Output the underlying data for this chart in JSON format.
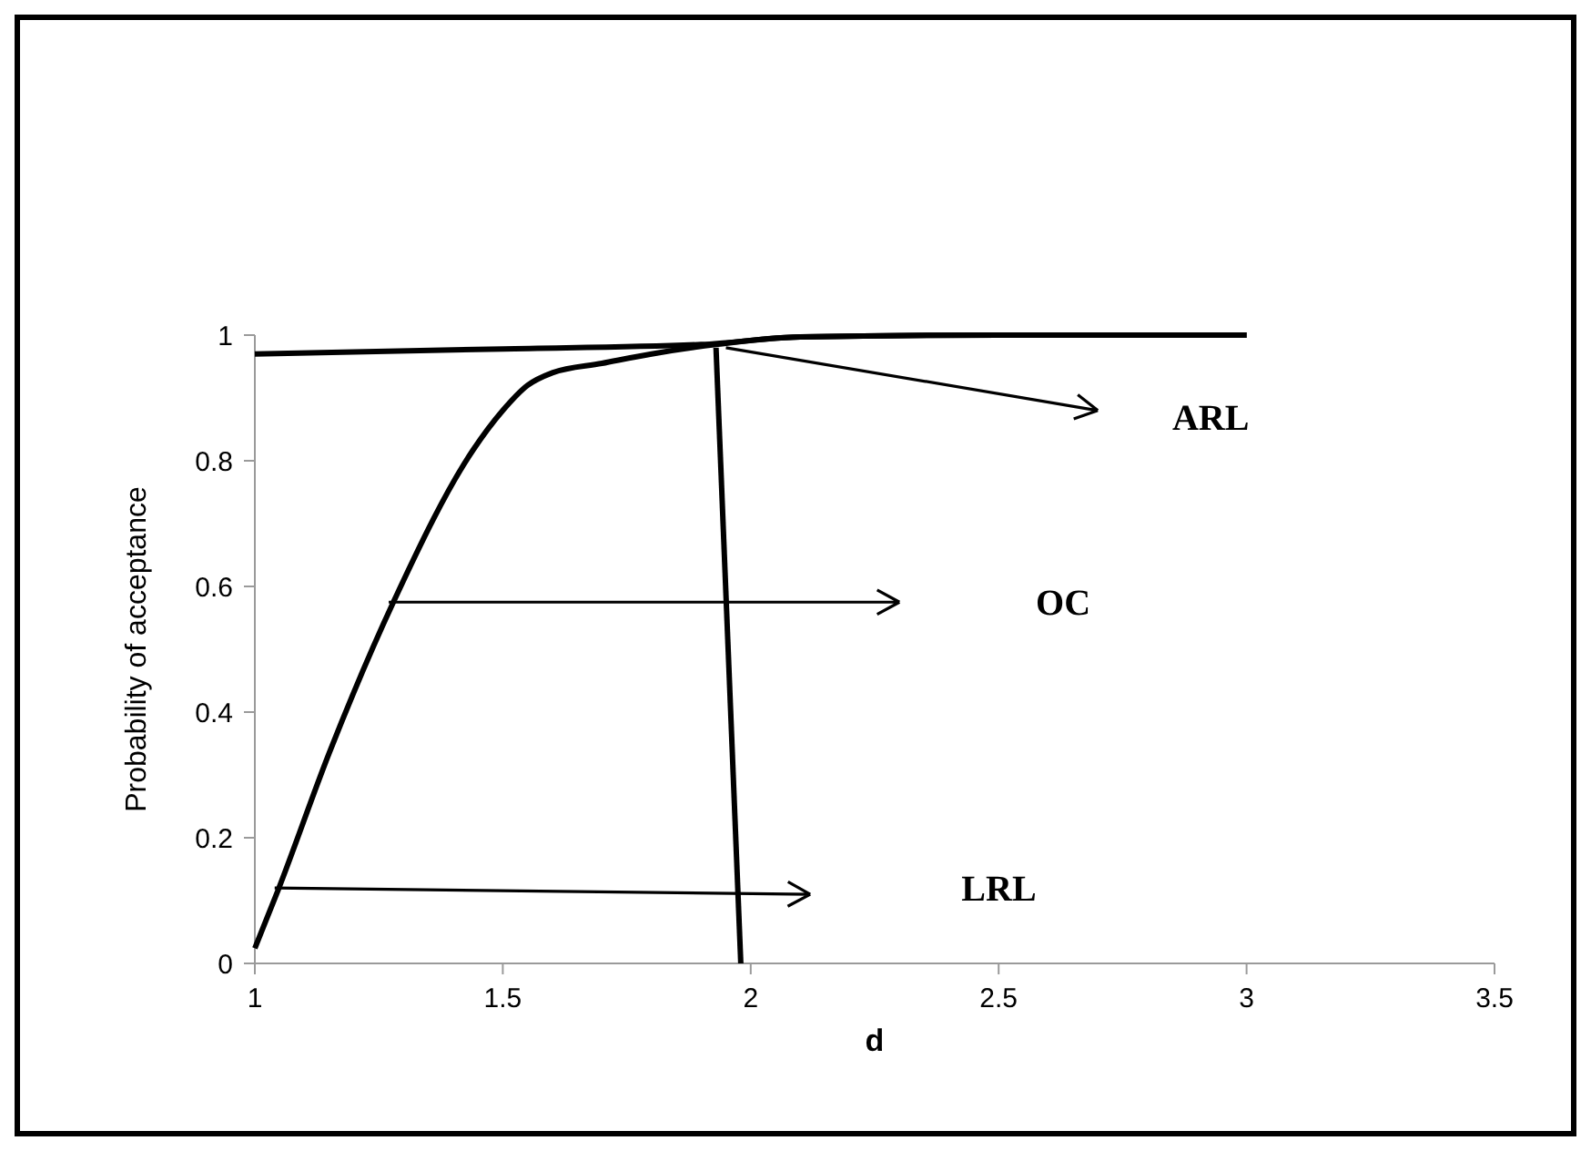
{
  "chart_data": {
    "type": "line",
    "xlabel": "d",
    "ylabel": "Probability of acceptance",
    "xlim": [
      1,
      3.5
    ],
    "xticks": [
      1,
      1.5,
      2,
      2.5,
      3,
      3.5
    ],
    "ylim": [
      0,
      1
    ],
    "yticks": [
      0,
      0.2,
      0.4,
      0.6,
      0.8,
      1
    ],
    "grid": false,
    "marker": "none",
    "line_style": "solid",
    "series": [
      {
        "color": "#000000",
        "x": [
          1,
          1.5,
          1.9,
          2.1,
          2.5,
          3
        ],
        "values": [
          0.97,
          0.978,
          0.985,
          0.997,
          1,
          1
        ]
      },
      {
        "color": "#000000",
        "x": [
          1,
          1.047,
          1.15,
          1.28,
          1.44,
          1.5,
          1.55,
          1.6,
          1.7,
          1.8,
          1.93,
          2.1,
          2.5,
          3
        ],
        "values": [
          0.024,
          0.117,
          0.335,
          0.576,
          0.817,
          0.88,
          0.92,
          0.94,
          0.955,
          0.97,
          0.985,
          0.997,
          1,
          1
        ]
      },
      {
        "color": "#000000",
        "x": [
          1.93,
          1.98
        ],
        "values": [
          0.98,
          0
        ]
      }
    ],
    "annotations": [
      "ARL",
      "OC",
      "LRL"
    ]
  }
}
